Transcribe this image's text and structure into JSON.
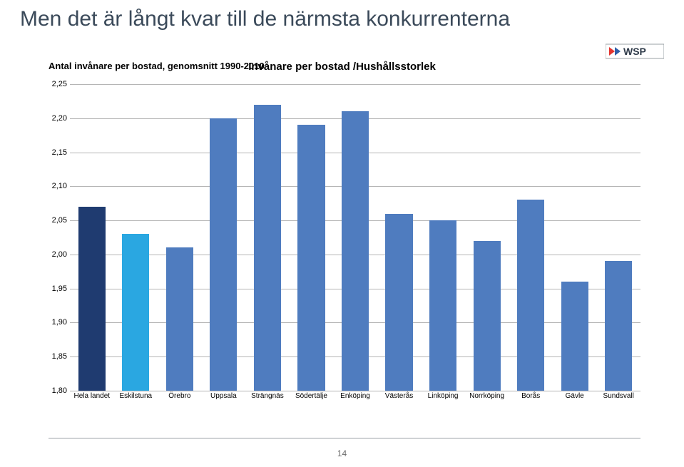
{
  "title": "Men det är långt kvar till de närmsta konkurrenterna",
  "subtitle": "Antal invånare per bostad, genomsnitt 1990-2010",
  "chart": {
    "type": "bar",
    "title": "Invånare per bostad /Hushållsstorlek",
    "title_fontsize": 15,
    "ylim": [
      1.8,
      2.25
    ],
    "ytick_step": 0.05,
    "ylabels": [
      "1,80",
      "1,85",
      "1,90",
      "1,95",
      "2,00",
      "2,05",
      "2,10",
      "2,15",
      "2,20",
      "2,25"
    ],
    "grid_color": "#b5b5b5",
    "background_color": "#ffffff",
    "categories": [
      "Hela landet",
      "Eskilstuna",
      "Örebro",
      "Uppsala",
      "Strängnäs",
      "Södertälje",
      "Enköping",
      "Västerås",
      "Linköping",
      "Norrköping",
      "Borås",
      "Gävle",
      "Sundsvall"
    ],
    "values": [
      2.07,
      2.03,
      2.01,
      2.2,
      2.22,
      2.19,
      2.21,
      2.06,
      2.05,
      2.02,
      2.08,
      1.96,
      1.99
    ],
    "bar_colors": [
      "#1f3b70",
      "#2aa7e1",
      "#4f7cbf",
      "#4f7cbf",
      "#4f7cbf",
      "#4f7cbf",
      "#4f7cbf",
      "#4f7cbf",
      "#4f7cbf",
      "#4f7cbf",
      "#4f7cbf",
      "#4f7cbf",
      "#4f7cbf"
    ],
    "bar_width": 0.62,
    "label_fontsize": 10
  },
  "page_number": "14",
  "logo_text": "WSP"
}
